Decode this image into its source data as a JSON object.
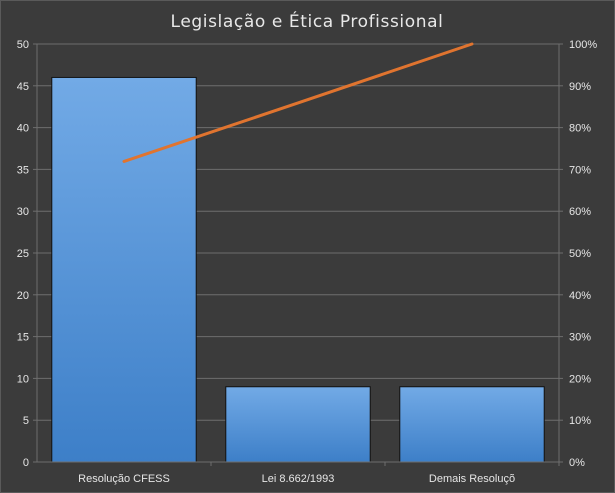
{
  "chart_data": {
    "type": "bar",
    "title": "Legislação e Ética Profissional",
    "categories": [
      "Resolução CFESS",
      "Lei 8.662/1993",
      "Demais Resoluçõ"
    ],
    "values": [
      46,
      9,
      9
    ],
    "cumulative_percent": [
      71.9,
      85.9,
      100
    ],
    "ylim": [
      0,
      50
    ],
    "yticks": [
      0,
      5,
      10,
      15,
      20,
      25,
      30,
      35,
      40,
      45,
      50
    ],
    "y2lim": [
      0,
      100
    ],
    "y2ticks": [
      "0%",
      "10%",
      "20%",
      "30%",
      "40%",
      "50%",
      "60%",
      "70%",
      "80%",
      "90%",
      "100%"
    ],
    "grid": true,
    "colors": {
      "background": "#3b3b3b",
      "grid": "#6e6e6e",
      "bar_top": "#72aae6",
      "bar_bottom": "#3d7fc8",
      "bar_stroke": "#111111",
      "line": "#e0742f"
    }
  }
}
